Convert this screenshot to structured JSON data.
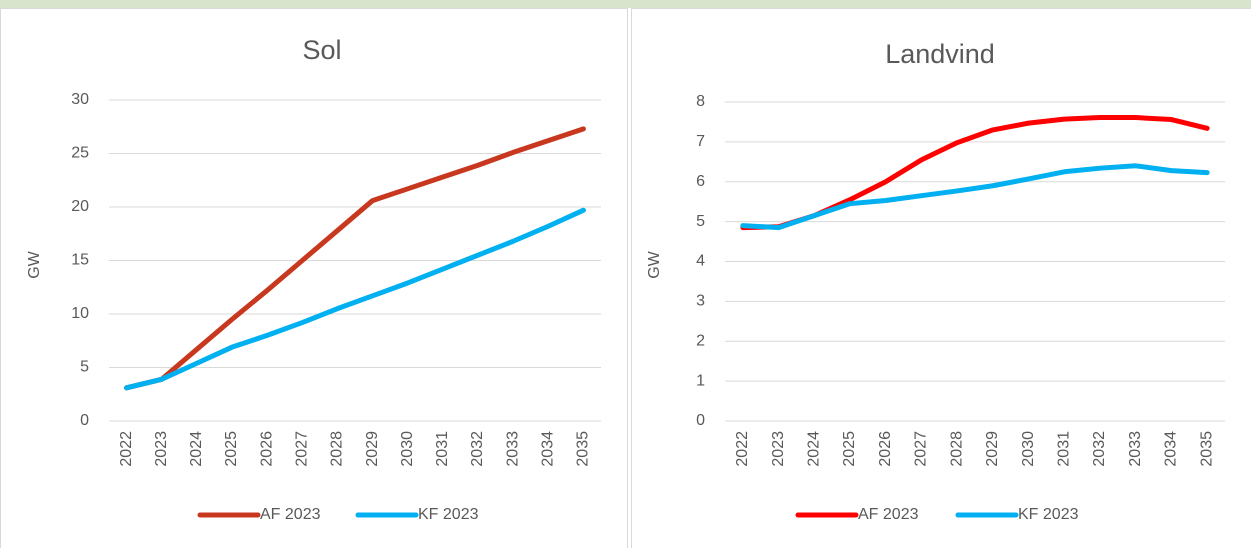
{
  "chart_data": [
    {
      "type": "line",
      "title": "Sol",
      "y_label": "GW",
      "categories": [
        "2022",
        "2023",
        "2024",
        "2025",
        "2026",
        "2027",
        "2028",
        "2029",
        "2030",
        "2031",
        "2032",
        "2033",
        "2034",
        "2035"
      ],
      "series": [
        {
          "name": "AF 2023",
          "color": "#c8381e",
          "values": [
            3.1,
            3.9,
            6.7,
            9.5,
            12.2,
            15.0,
            17.8,
            20.6,
            21.7,
            22.8,
            23.9,
            25.1,
            26.2,
            27.3
          ]
        },
        {
          "name": "KF 2023",
          "color": "#00b0f0",
          "values": [
            3.1,
            3.9,
            5.4,
            6.9,
            8.0,
            9.2,
            10.5,
            11.7,
            12.9,
            14.2,
            15.5,
            16.8,
            18.2,
            19.7
          ]
        }
      ],
      "ylim": [
        0,
        30
      ],
      "yticks": [
        0,
        5,
        10,
        15,
        20,
        25,
        30
      ],
      "grid": true,
      "legend": "bottom"
    },
    {
      "type": "line",
      "title": "Landvind",
      "y_label": "GW",
      "categories": [
        "2022",
        "2023",
        "2024",
        "2025",
        "2026",
        "2027",
        "2028",
        "2029",
        "2030",
        "2031",
        "2032",
        "2033",
        "2034",
        "2035"
      ],
      "series": [
        {
          "name": "AF 2023",
          "color": "#ff0000",
          "values": [
            4.85,
            4.87,
            5.15,
            5.55,
            6.0,
            6.55,
            6.98,
            7.3,
            7.47,
            7.57,
            7.61,
            7.61,
            7.56,
            7.34
          ]
        },
        {
          "name": "KF 2023",
          "color": "#00b0f0",
          "values": [
            4.9,
            4.85,
            5.15,
            5.45,
            5.53,
            5.65,
            5.77,
            5.9,
            6.07,
            6.25,
            6.34,
            6.4,
            6.28,
            6.23
          ]
        }
      ],
      "ylim": [
        0,
        8
      ],
      "yticks": [
        0,
        1,
        2,
        3,
        4,
        5,
        6,
        7,
        8
      ],
      "grid": true,
      "legend": "bottom"
    }
  ]
}
